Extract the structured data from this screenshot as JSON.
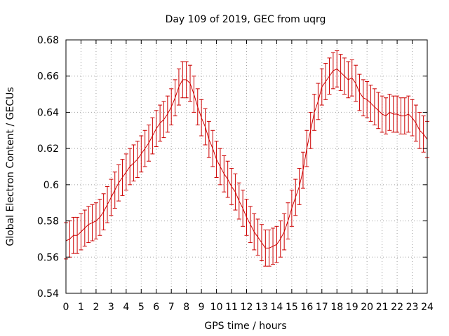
{
  "chart_data": {
    "type": "line",
    "title": "Day 109 of 2019, GEC from uqrg",
    "xlabel": "GPS time / hours",
    "ylabel": "Global Electron Content / GECUs",
    "xlim": [
      0,
      24
    ],
    "ylim": [
      0.54,
      0.68
    ],
    "grid": true,
    "error_bars": true,
    "x_ticks": [
      "0",
      "1",
      "2",
      "3",
      "4",
      "5",
      "6",
      "7",
      "8",
      "9",
      "10",
      "11",
      "12",
      "13",
      "14",
      "15",
      "16",
      "17",
      "18",
      "19",
      "20",
      "21",
      "22",
      "23",
      "24"
    ],
    "y_ticks": [
      "0.54",
      "0.56",
      "0.58",
      "0.6",
      "0.62",
      "0.64",
      "0.66",
      "0.68"
    ],
    "series": [
      {
        "color": "#cc0000",
        "x": [
          0,
          0.25,
          0.5,
          0.75,
          1,
          1.25,
          1.5,
          1.75,
          2,
          2.25,
          2.5,
          2.75,
          3,
          3.25,
          3.5,
          3.75,
          4,
          4.25,
          4.5,
          4.75,
          5,
          5.25,
          5.5,
          5.75,
          6,
          6.25,
          6.5,
          6.75,
          7,
          7.25,
          7.5,
          7.75,
          8,
          8.25,
          8.5,
          8.75,
          9,
          9.25,
          9.5,
          9.75,
          10,
          10.25,
          10.5,
          10.75,
          11,
          11.25,
          11.5,
          11.75,
          12,
          12.25,
          12.5,
          12.75,
          13,
          13.25,
          13.5,
          13.75,
          14,
          14.25,
          14.5,
          14.75,
          15,
          15.25,
          15.5,
          15.75,
          16,
          16.25,
          16.5,
          16.75,
          17,
          17.25,
          17.5,
          17.75,
          18,
          18.25,
          18.5,
          18.75,
          19,
          19.25,
          19.5,
          19.75,
          20,
          20.25,
          20.5,
          20.75,
          21,
          21.25,
          21.5,
          21.75,
          22,
          22.25,
          22.5,
          22.75,
          23,
          23.25,
          23.5,
          23.75,
          24
        ],
        "y": [
          0.569,
          0.57,
          0.572,
          0.572,
          0.574,
          0.576,
          0.578,
          0.579,
          0.58,
          0.582,
          0.585,
          0.589,
          0.593,
          0.597,
          0.601,
          0.604,
          0.607,
          0.61,
          0.612,
          0.614,
          0.617,
          0.62,
          0.623,
          0.627,
          0.631,
          0.634,
          0.636,
          0.639,
          0.643,
          0.648,
          0.654,
          0.658,
          0.658,
          0.656,
          0.65,
          0.643,
          0.637,
          0.632,
          0.625,
          0.62,
          0.614,
          0.61,
          0.606,
          0.603,
          0.599,
          0.596,
          0.591,
          0.587,
          0.582,
          0.578,
          0.574,
          0.571,
          0.568,
          0.565,
          0.565,
          0.566,
          0.567,
          0.57,
          0.574,
          0.58,
          0.587,
          0.593,
          0.599,
          0.608,
          0.62,
          0.63,
          0.64,
          0.646,
          0.654,
          0.657,
          0.66,
          0.663,
          0.664,
          0.662,
          0.66,
          0.658,
          0.659,
          0.656,
          0.651,
          0.648,
          0.647,
          0.645,
          0.643,
          0.641,
          0.639,
          0.638,
          0.64,
          0.639,
          0.639,
          0.638,
          0.638,
          0.639,
          0.637,
          0.634,
          0.63,
          0.628,
          0.625
        ],
        "error": 0.01
      }
    ]
  }
}
